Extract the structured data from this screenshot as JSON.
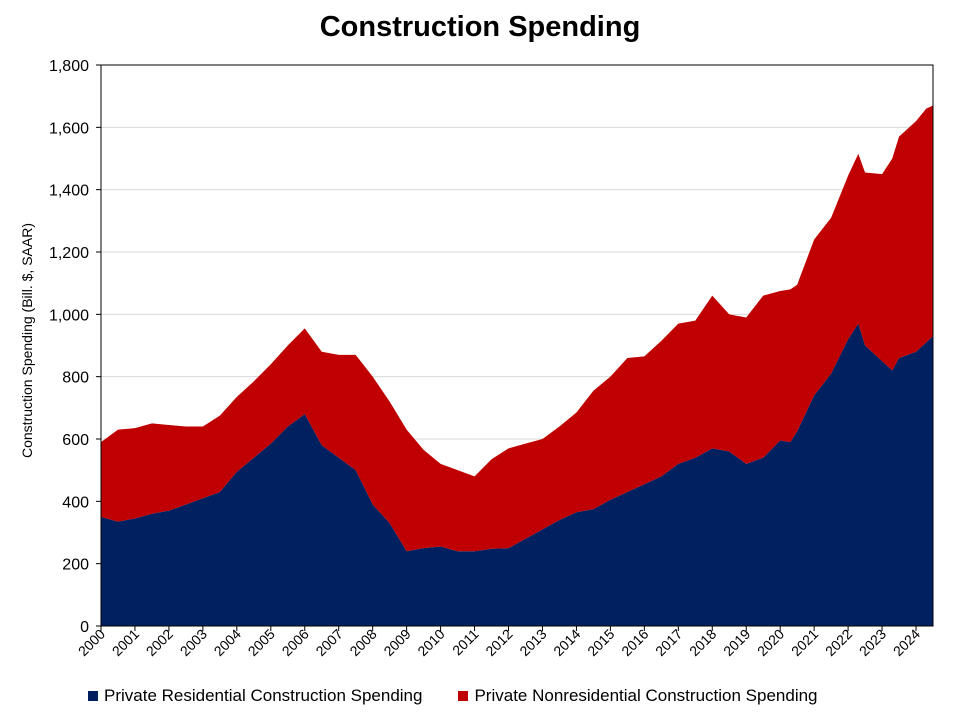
{
  "chart_data": {
    "type": "area",
    "stacked": true,
    "title": "Construction Spending",
    "ylabel": "Construction Spending (Bill. $, SAAR)",
    "xlabel": "",
    "ylim": [
      0,
      1800
    ],
    "yticks": [
      0,
      200,
      400,
      600,
      800,
      1000,
      1200,
      1400,
      1600,
      1800
    ],
    "ytick_labels": [
      "0",
      "200",
      "400",
      "600",
      "800",
      "1,000",
      "1,200",
      "1,400",
      "1,600",
      "1,800"
    ],
    "xlim": [
      2000,
      2024.5
    ],
    "xtick_labels": [
      "2000",
      "2001",
      "2002",
      "2003",
      "2004",
      "2005",
      "2006",
      "2007",
      "2008",
      "2009",
      "2010",
      "2011",
      "2012",
      "2013",
      "2014",
      "2015",
      "2016",
      "2017",
      "2018",
      "2019",
      "2020",
      "2021",
      "2022",
      "2023",
      "2024"
    ],
    "grid": "horizontal",
    "legend_position": "bottom",
    "x": [
      2000.0,
      2000.5,
      2001.0,
      2001.5,
      2002.0,
      2002.5,
      2003.0,
      2003.5,
      2004.0,
      2004.5,
      2005.0,
      2005.5,
      2006.0,
      2006.5,
      2007.0,
      2007.5,
      2008.0,
      2008.5,
      2009.0,
      2009.5,
      2010.0,
      2010.5,
      2011.0,
      2011.5,
      2012.0,
      2012.5,
      2013.0,
      2013.5,
      2014.0,
      2014.5,
      2015.0,
      2015.5,
      2016.0,
      2016.5,
      2017.0,
      2017.5,
      2018.0,
      2018.5,
      2019.0,
      2019.5,
      2020.0,
      2020.3,
      2020.5,
      2021.0,
      2021.5,
      2022.0,
      2022.3,
      2022.5,
      2023.0,
      2023.3,
      2023.5,
      2024.0,
      2024.3,
      2024.5
    ],
    "series": [
      {
        "name": "Private Residential Construction Spending",
        "color": "#002060",
        "values": [
          350,
          335,
          345,
          360,
          370,
          390,
          410,
          430,
          495,
          540,
          585,
          640,
          680,
          580,
          540,
          500,
          390,
          330,
          240,
          250,
          255,
          240,
          240,
          248,
          250,
          280,
          310,
          340,
          365,
          375,
          405,
          430,
          455,
          480,
          520,
          540,
          570,
          560,
          520,
          540,
          595,
          590,
          625,
          740,
          810,
          920,
          970,
          900,
          850,
          820,
          860,
          880,
          910,
          930
        ]
      },
      {
        "name": "Private Nonresidential Construction Spending",
        "color": "#c00000",
        "values": [
          240,
          295,
          290,
          290,
          275,
          250,
          230,
          245,
          240,
          245,
          255,
          260,
          275,
          300,
          330,
          370,
          410,
          390,
          390,
          315,
          265,
          260,
          240,
          287,
          320,
          305,
          290,
          300,
          320,
          380,
          395,
          430,
          410,
          435,
          450,
          440,
          490,
          440,
          470,
          520,
          480,
          490,
          470,
          500,
          500,
          525,
          545,
          555,
          600,
          680,
          710,
          740,
          750,
          740
        ]
      }
    ]
  }
}
